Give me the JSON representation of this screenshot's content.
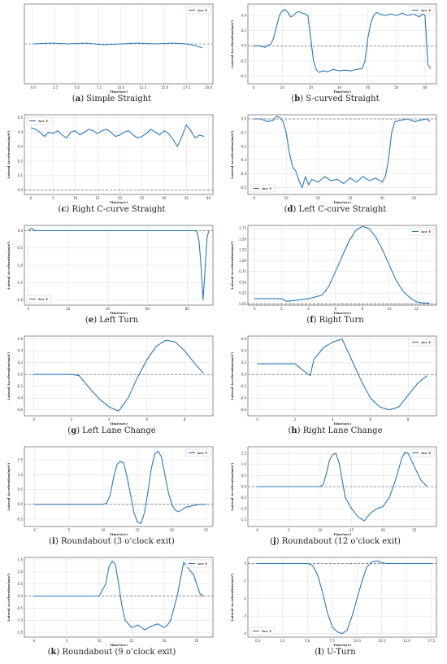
{
  "chart_data": [
    {
      "id": "a",
      "caption_letter": "a",
      "caption_text": "Simple Straight",
      "type": "line",
      "xlabel": "Time(sec)",
      "ylabel": "",
      "legend": "Acc Y",
      "legend_pos": "top-right",
      "xlim": [
        -1,
        20.5
      ],
      "ylim": [
        -0.5,
        0.5
      ],
      "xticks": [
        "0.0",
        "2.5",
        "5.0",
        "7.5",
        "10.0",
        "12.5",
        "15.0",
        "17.5",
        "20.0"
      ],
      "yticks": [],
      "ref_y": 0.0,
      "series": [
        {
          "x": [
            0,
            2,
            4,
            6,
            8,
            10,
            12,
            14,
            16,
            17.5,
            18.5,
            19.3
          ],
          "y": [
            0.0,
            0.01,
            0.0,
            0.01,
            -0.01,
            0.0,
            0.01,
            0.0,
            0.01,
            0.0,
            -0.02,
            -0.05
          ]
        }
      ]
    },
    {
      "id": "b",
      "caption_letter": "b",
      "caption_text": "S-curved Straight",
      "type": "line",
      "xlabel": "Time(sec)",
      "ylabel": "Lateral Acceleration(m/s²)",
      "legend": "Acc Y",
      "legend_pos": "top-right",
      "xlim": [
        -2,
        64
      ],
      "ylim": [
        -0.5,
        0.55
      ],
      "xticks": [
        "0",
        "10",
        "20",
        "30",
        "40",
        "50",
        "60"
      ],
      "yticks": [
        "-0.4",
        "-0.2",
        "0.0",
        "0.2",
        "0.4"
      ],
      "ref_y": 0.0,
      "series": [
        {
          "x": [
            0,
            2,
            4,
            5,
            6,
            7,
            8,
            9,
            10,
            11,
            12,
            13,
            14,
            15,
            16,
            17,
            18,
            19,
            20,
            21,
            22,
            23,
            24,
            26,
            28,
            30,
            32,
            34,
            36,
            38,
            39,
            40,
            41,
            42,
            43,
            44,
            46,
            48,
            50,
            52,
            54,
            56,
            58,
            59,
            60,
            61,
            62
          ],
          "y": [
            0.0,
            0.0,
            -0.02,
            0.01,
            0.02,
            0.1,
            0.25,
            0.4,
            0.46,
            0.48,
            0.44,
            0.38,
            0.4,
            0.44,
            0.45,
            0.43,
            0.42,
            0.4,
            0.1,
            -0.2,
            -0.32,
            -0.35,
            -0.33,
            -0.34,
            -0.31,
            -0.33,
            -0.32,
            -0.33,
            -0.31,
            -0.3,
            -0.2,
            0.1,
            0.3,
            0.4,
            0.44,
            0.42,
            0.4,
            0.42,
            0.4,
            0.43,
            0.4,
            0.42,
            0.38,
            0.42,
            0.4,
            -0.25,
            -0.3
          ]
        }
      ]
    },
    {
      "id": "c",
      "caption_letter": "c",
      "caption_text": "Right C-curve Straight",
      "type": "line",
      "xlabel": "Time(sec)",
      "ylabel": "Lateral Acceleration(m/s²)",
      "legend": "Acc Y",
      "legend_pos": "top-left",
      "xlim": [
        -1.5,
        41
      ],
      "ylim": [
        -0.03,
        0.52
      ],
      "xticks": [
        "0",
        "5",
        "10",
        "15",
        "20",
        "25",
        "30",
        "35",
        "40"
      ],
      "yticks": [
        "0.0",
        "0.1",
        "0.2",
        "0.3",
        "0.4",
        "0.5"
      ],
      "ref_y": 0.0,
      "series": [
        {
          "x": [
            0,
            1,
            2,
            3,
            4,
            5,
            6,
            7,
            8,
            9,
            10,
            11,
            12,
            13,
            14,
            15,
            16,
            17,
            18,
            19,
            20,
            21,
            22,
            23,
            24,
            25,
            26,
            27,
            28,
            29,
            30,
            31,
            32,
            33,
            34,
            35,
            36,
            37,
            38,
            39
          ],
          "y": [
            0.43,
            0.42,
            0.4,
            0.37,
            0.4,
            0.39,
            0.41,
            0.38,
            0.36,
            0.4,
            0.41,
            0.38,
            0.4,
            0.42,
            0.41,
            0.39,
            0.41,
            0.42,
            0.4,
            0.37,
            0.38,
            0.4,
            0.41,
            0.38,
            0.36,
            0.37,
            0.39,
            0.42,
            0.4,
            0.38,
            0.41,
            0.39,
            0.35,
            0.3,
            0.37,
            0.45,
            0.41,
            0.36,
            0.38,
            0.37
          ]
        }
      ]
    },
    {
      "id": "d",
      "caption_letter": "d",
      "caption_text": "Left C-curve Straight",
      "type": "line",
      "xlabel": "Time(sec)",
      "ylabel": "Lateral Acceleration(m/s²)",
      "legend": "Acc Y",
      "legend_pos": "bottom-left",
      "xlim": [
        -2,
        57
      ],
      "ylim": [
        -0.55,
        0.03
      ],
      "xticks": [
        "0",
        "10",
        "20",
        "30",
        "40",
        "50"
      ],
      "yticks": [
        "-0.5",
        "-0.4",
        "-0.3",
        "-0.2",
        "-0.1",
        "0.0"
      ],
      "ref_y": 0.0,
      "series": [
        {
          "x": [
            0,
            2,
            4,
            6,
            7,
            8,
            9,
            10,
            11,
            12,
            13,
            14,
            15,
            16,
            17,
            18,
            20,
            22,
            24,
            26,
            28,
            30,
            32,
            34,
            36,
            38,
            40,
            41,
            42,
            43,
            44,
            46,
            48,
            50,
            52,
            54,
            55
          ],
          "y": [
            0.0,
            0.0,
            -0.02,
            -0.01,
            0.02,
            0.01,
            -0.02,
            -0.1,
            -0.25,
            -0.35,
            -0.38,
            -0.45,
            -0.5,
            -0.42,
            -0.48,
            -0.44,
            -0.46,
            -0.42,
            -0.45,
            -0.44,
            -0.47,
            -0.43,
            -0.46,
            -0.42,
            -0.45,
            -0.43,
            -0.46,
            -0.42,
            -0.3,
            -0.1,
            -0.02,
            -0.01,
            0.0,
            -0.02,
            -0.01,
            0.0,
            -0.02
          ]
        }
      ]
    },
    {
      "id": "e",
      "caption_letter": "e",
      "caption_text": "Left Turn",
      "type": "line",
      "xlabel": "Time(sec)",
      "ylabel": "Lateral Acceleration(m/s²)",
      "legend": "Acc Y",
      "legend_pos": "bottom-left",
      "xlim": [
        -2,
        93
      ],
      "ylim": [
        -2.15,
        0.15
      ],
      "xticks": [
        "0",
        "20",
        "40",
        "60",
        "80"
      ],
      "yticks": [
        "-2.0",
        "-1.5",
        "-1.0",
        "-0.5",
        "0.0"
      ],
      "ref_y": 0.0,
      "series": [
        {
          "x": [
            0,
            1,
            2,
            3,
            5,
            20,
            40,
            60,
            80,
            84,
            85,
            86,
            87,
            88,
            89,
            90,
            91
          ],
          "y": [
            0.0,
            0.05,
            0.06,
            0.0,
            0.0,
            0.0,
            0.0,
            0.0,
            0.0,
            0.0,
            -0.05,
            -0.3,
            -1.0,
            -2.0,
            -1.2,
            -0.2,
            0.0
          ]
        }
      ]
    },
    {
      "id": "f",
      "caption_letter": "f",
      "caption_text": "Right Turn",
      "type": "line",
      "xlabel": "Time(sec)",
      "ylabel": "Lateral Acceleration(m/s²)",
      "legend": "Acc Y",
      "legend_pos": "top-right",
      "xlim": [
        -0.5,
        13.5
      ],
      "ylim": [
        -0.03,
        1.82
      ],
      "xticks": [
        "0",
        "2",
        "4",
        "6",
        "8",
        "10",
        "12"
      ],
      "yticks": [
        "0.00",
        "0.25",
        "0.50",
        "0.75",
        "1.00",
        "1.25",
        "1.50",
        "1.75"
      ],
      "ref_y": 0.0,
      "series": [
        {
          "x": [
            0,
            1,
            2,
            2.4,
            3,
            4,
            5,
            5.5,
            6,
            6.5,
            7,
            7.5,
            8,
            8.5,
            9,
            9.5,
            10,
            10.5,
            11,
            11.5,
            12,
            12.5,
            13
          ],
          "y": [
            0.12,
            0.12,
            0.12,
            0.06,
            0.08,
            0.12,
            0.2,
            0.4,
            0.75,
            1.1,
            1.45,
            1.7,
            1.8,
            1.75,
            1.55,
            1.25,
            0.9,
            0.55,
            0.3,
            0.15,
            0.05,
            0.02,
            0.02
          ]
        }
      ]
    },
    {
      "id": "g",
      "caption_letter": "g",
      "caption_text": "Left Lane Change",
      "type": "line",
      "xlabel": "Time(sec)",
      "ylabel": "Lateral Acceleration(m/s²)",
      "legend": "",
      "legend_pos": "",
      "xlim": [
        -0.5,
        9.5
      ],
      "ylim": [
        -0.7,
        0.65
      ],
      "xticks": [
        "0",
        "2",
        "4",
        "6",
        "8"
      ],
      "yticks": [
        "-0.6",
        "-0.4",
        "-0.2",
        "0.0",
        "0.2",
        "0.4",
        "0.6"
      ],
      "ref_y": 0.0,
      "series": [
        {
          "x": [
            0,
            1,
            2,
            2.4,
            3,
            3.5,
            4,
            4.5,
            5,
            5.5,
            6,
            6.5,
            7,
            7.5,
            8,
            8.5,
            9
          ],
          "y": [
            0.0,
            0.0,
            0.0,
            -0.02,
            -0.25,
            -0.42,
            -0.55,
            -0.62,
            -0.4,
            -0.05,
            0.25,
            0.48,
            0.58,
            0.55,
            0.4,
            0.2,
            0.02
          ]
        }
      ]
    },
    {
      "id": "h",
      "caption_letter": "h",
      "caption_text": "Right Lane Change",
      "type": "line",
      "xlabel": "Time(sec)",
      "ylabel": "Lateral Acceleration(m/s²)",
      "legend": "Acc Y",
      "legend_pos": "top-right",
      "xlim": [
        -0.5,
        9.5
      ],
      "ylim": [
        -0.7,
        0.65
      ],
      "xticks": [
        "0",
        "2",
        "4",
        "6",
        "8"
      ],
      "yticks": [
        "-0.6",
        "-0.4",
        "-0.2",
        "0.0",
        "0.2",
        "0.4",
        "0.6"
      ],
      "ref_y": 0.0,
      "series": [
        {
          "x": [
            0,
            1,
            2,
            2.5,
            2.8,
            3,
            3.5,
            4,
            4.5,
            5,
            5.5,
            6,
            6.5,
            7,
            7.5,
            8,
            8.5,
            9
          ],
          "y": [
            0.18,
            0.18,
            0.18,
            0.05,
            -0.02,
            0.25,
            0.45,
            0.55,
            0.6,
            0.25,
            -0.1,
            -0.4,
            -0.55,
            -0.6,
            -0.55,
            -0.35,
            -0.15,
            -0.02
          ]
        }
      ]
    },
    {
      "id": "i",
      "caption_letter": "i",
      "caption_text": "Roundabout (3 o’clock exit)",
      "type": "line",
      "xlabel": "Time(sec)",
      "ylabel": "Lateral Acceleration(m/s²)",
      "legend": "Acc Y",
      "legend_pos": "top-right",
      "xlim": [
        -1.5,
        26
      ],
      "ylim": [
        -0.75,
        1.95
      ],
      "xticks": [
        "0",
        "5",
        "10",
        "15",
        "20",
        "25"
      ],
      "yticks": [
        "-0.5",
        "0.0",
        "0.5",
        "1.0",
        "1.5"
      ],
      "ref_y": 0.0,
      "series": [
        {
          "x": [
            0,
            5,
            10,
            10.5,
            11,
            11.5,
            12,
            12.5,
            13,
            13.5,
            14,
            14.5,
            15,
            15.5,
            16,
            16.5,
            17,
            17.5,
            18,
            18.5,
            19,
            19.5,
            20,
            20.5,
            21,
            22,
            23,
            24,
            25
          ],
          "y": [
            0.0,
            0.0,
            0.0,
            0.05,
            0.3,
            0.9,
            1.35,
            1.45,
            1.4,
            0.9,
            0.3,
            -0.3,
            -0.6,
            -0.65,
            -0.3,
            0.4,
            1.2,
            1.7,
            1.8,
            1.6,
            1.0,
            0.4,
            0.0,
            -0.2,
            -0.25,
            -0.1,
            -0.05,
            0.0,
            0.0
          ]
        }
      ]
    },
    {
      "id": "j",
      "caption_letter": "j",
      "caption_text": "Roundabout (12 o’clock exit)",
      "type": "line",
      "xlabel": "Time(sec)",
      "ylabel": "Lateral Acceleration(m/s²)",
      "legend": "Acc Y",
      "legend_pos": "top-right",
      "xlim": [
        -1.5,
        28.5
      ],
      "ylim": [
        -1.8,
        1.8
      ],
      "xticks": [
        "0",
        "5",
        "10",
        "15",
        "20",
        "25"
      ],
      "yticks": [
        "-1.5",
        "-1.0",
        "-0.5",
        "0.0",
        "0.5",
        "1.0",
        "1.5"
      ],
      "ref_y": 0.0,
      "series": [
        {
          "x": [
            0,
            5,
            10,
            10.5,
            11,
            11.5,
            12,
            12.5,
            13,
            13.5,
            14,
            15,
            16,
            17,
            18,
            19,
            20,
            21,
            22,
            23,
            23.5,
            24,
            25,
            26,
            27
          ],
          "y": [
            0.0,
            0.0,
            0.0,
            0.1,
            0.6,
            1.2,
            1.45,
            1.5,
            1.1,
            0.3,
            -0.5,
            -1.0,
            -1.35,
            -1.55,
            -1.2,
            -1.0,
            -0.9,
            -0.5,
            0.3,
            1.3,
            1.55,
            1.5,
            0.9,
            0.3,
            0.0
          ]
        }
      ]
    },
    {
      "id": "k",
      "caption_letter": "k",
      "caption_text": "Roundabout (9 o’clock exit)",
      "type": "line",
      "xlabel": "Time(sec)",
      "ylabel": "Lateral Acceleration(m/s²)",
      "legend": "Acc Y",
      "legend_pos": "top-right",
      "xlim": [
        -1.5,
        27.5
      ],
      "ylim": [
        -1.7,
        1.6
      ],
      "xticks": [
        "0",
        "5",
        "10",
        "15",
        "20",
        "25"
      ],
      "yticks": [
        "-1.5",
        "-1.0",
        "-0.5",
        "0.0",
        "0.5",
        "1.0",
        "1.5"
      ],
      "ref_y": 0.0,
      "series": [
        {
          "x": [
            0,
            5,
            10,
            11,
            11.5,
            12,
            12.5,
            13,
            13.5,
            14,
            15,
            16,
            17,
            18,
            19,
            20,
            20.5,
            21,
            22,
            23,
            24,
            24.5,
            25,
            25.5,
            26
          ],
          "y": [
            0.0,
            0.0,
            0.0,
            0.5,
            1.2,
            1.45,
            1.3,
            0.5,
            -0.4,
            -1.0,
            -1.3,
            -1.2,
            -1.4,
            -1.25,
            -1.15,
            -1.3,
            -1.2,
            -1.0,
            0.0,
            1.4,
            1.05,
            0.9,
            0.5,
            0.1,
            0.0
          ]
        }
      ]
    },
    {
      "id": "l",
      "caption_letter": "l",
      "caption_text": "U-Turn",
      "type": "line",
      "xlabel": "Time(sec)",
      "ylabel": "Lateral Acceleration(m/s²)",
      "legend": "Acc Y",
      "legend_pos": "bottom-left",
      "xlim": [
        -1,
        18
      ],
      "ylim": [
        -4.2,
        0.35
      ],
      "xticks": [
        "0.0",
        "2.5",
        "5.0",
        "7.5",
        "10.0",
        "12.5",
        "15.0",
        "17.5"
      ],
      "yticks": [
        "-4",
        "-3",
        "-2",
        "-1",
        "0"
      ],
      "ref_y": 0.0,
      "series": [
        {
          "x": [
            0,
            2.5,
            5,
            5.5,
            6,
            6.5,
            7,
            7.5,
            8,
            8.5,
            9,
            9.5,
            10,
            10.5,
            11,
            11.5,
            12,
            12.5,
            13,
            15,
            17.5
          ],
          "y": [
            0.0,
            0.0,
            0.0,
            -0.1,
            -0.6,
            -1.6,
            -2.8,
            -3.6,
            -3.9,
            -4.0,
            -3.8,
            -3.0,
            -2.0,
            -1.0,
            -0.2,
            0.1,
            0.15,
            0.05,
            0.0,
            0.0,
            0.0
          ]
        }
      ]
    }
  ]
}
